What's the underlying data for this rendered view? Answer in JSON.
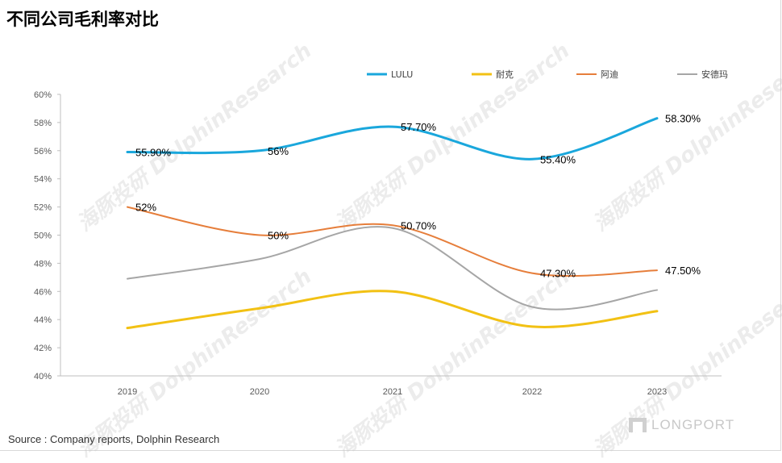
{
  "header": {
    "title": "不同公司毛利率对比"
  },
  "footer": {
    "source": "Source : Company reports, Dolphin Research",
    "brand": "LONGPORT"
  },
  "watermark": {
    "text": "海豚投研 DolphinResearch"
  },
  "chart_data": {
    "type": "line",
    "title": "不同公司毛利率对比",
    "xlabel": "",
    "ylabel": "",
    "categories": [
      "2019",
      "2020",
      "2021",
      "2022",
      "2023"
    ],
    "ylim": [
      40,
      60
    ],
    "yticks": [
      "40%",
      "42%",
      "44%",
      "46%",
      "48%",
      "50%",
      "52%",
      "54%",
      "56%",
      "58%",
      "60%"
    ],
    "grid": false,
    "legend_position": "top",
    "smooth": true,
    "series": [
      {
        "name": "LULU",
        "color": "#1aa7dc",
        "width": 3,
        "values": [
          55.9,
          56.0,
          57.7,
          55.4,
          58.3
        ],
        "labels": [
          "55.90%",
          "56%",
          "57.70%",
          "55.40%",
          "58.30%"
        ]
      },
      {
        "name": "耐克",
        "color": "#f2c114",
        "width": 3,
        "values": [
          43.4,
          44.8,
          46.0,
          43.5,
          44.6
        ],
        "labels": []
      },
      {
        "name": "阿迪",
        "color": "#e67e3b",
        "width": 2,
        "values": [
          52.0,
          50.0,
          50.7,
          47.3,
          47.5
        ],
        "labels": [
          "52%",
          "50%",
          "50.70%",
          "47.30%",
          "47.50%"
        ]
      },
      {
        "name": "安德玛",
        "color": "#a6a6a6",
        "width": 2,
        "values": [
          46.9,
          48.3,
          50.5,
          44.9,
          46.1
        ],
        "labels": []
      }
    ]
  }
}
